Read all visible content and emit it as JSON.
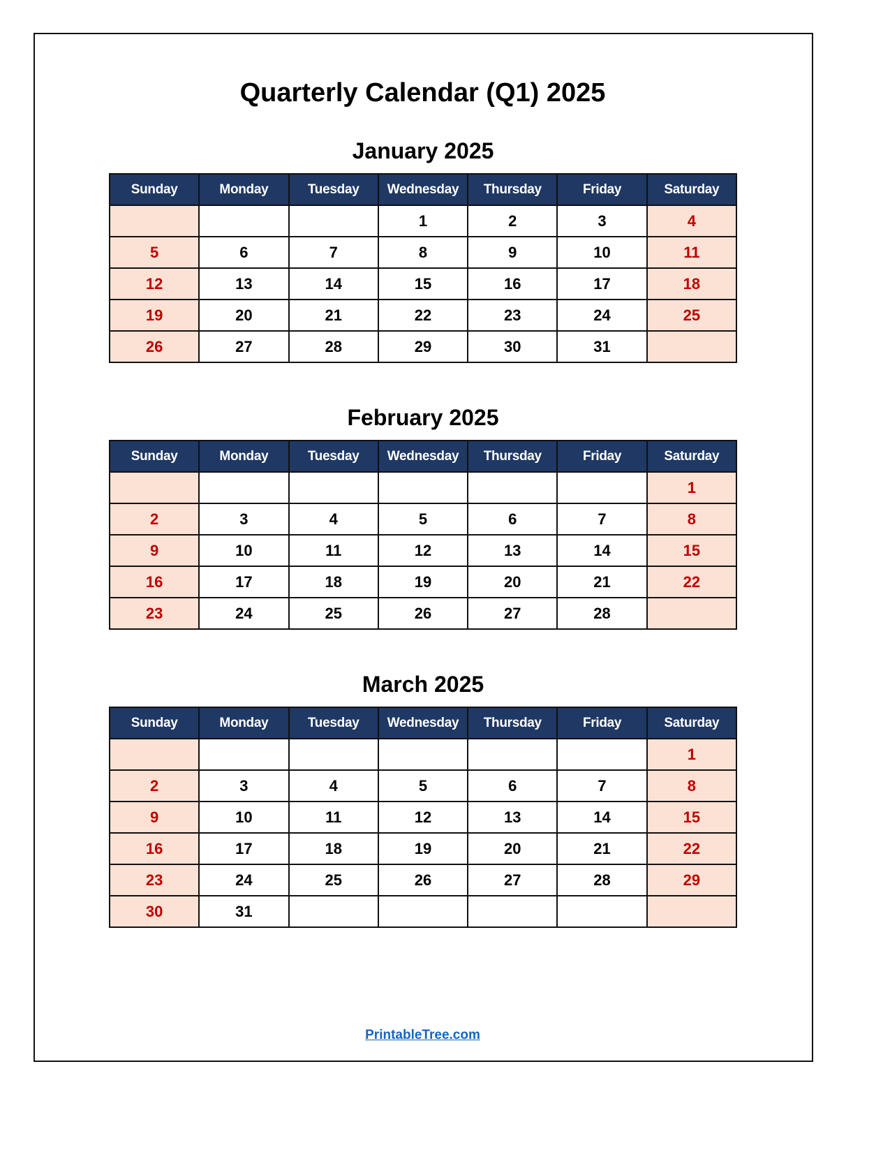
{
  "title": "Quarterly Calendar (Q1) 2025",
  "weekdays": [
    "Sunday",
    "Monday",
    "Tuesday",
    "Wednesday",
    "Thursday",
    "Friday",
    "Saturday"
  ],
  "colors": {
    "header_bg": "#1f3864",
    "weekend_bg": "#fbe2d5",
    "weekend_text": "#c00000",
    "link": "#1565c0"
  },
  "months": [
    {
      "title": "January 2025",
      "weeks": [
        [
          "",
          "",
          "",
          "1",
          "2",
          "3",
          "4"
        ],
        [
          "5",
          "6",
          "7",
          "8",
          "9",
          "10",
          "11"
        ],
        [
          "12",
          "13",
          "14",
          "15",
          "16",
          "17",
          "18"
        ],
        [
          "19",
          "20",
          "21",
          "22",
          "23",
          "24",
          "25"
        ],
        [
          "26",
          "27",
          "28",
          "29",
          "30",
          "31",
          ""
        ]
      ]
    },
    {
      "title": "February 2025",
      "weeks": [
        [
          "",
          "",
          "",
          "",
          "",
          "",
          "1"
        ],
        [
          "2",
          "3",
          "4",
          "5",
          "6",
          "7",
          "8"
        ],
        [
          "9",
          "10",
          "11",
          "12",
          "13",
          "14",
          "15"
        ],
        [
          "16",
          "17",
          "18",
          "19",
          "20",
          "21",
          "22"
        ],
        [
          "23",
          "24",
          "25",
          "26",
          "27",
          "28",
          ""
        ]
      ]
    },
    {
      "title": "March 2025",
      "weeks": [
        [
          "",
          "",
          "",
          "",
          "",
          "",
          "1"
        ],
        [
          "2",
          "3",
          "4",
          "5",
          "6",
          "7",
          "8"
        ],
        [
          "9",
          "10",
          "11",
          "12",
          "13",
          "14",
          "15"
        ],
        [
          "16",
          "17",
          "18",
          "19",
          "20",
          "21",
          "22"
        ],
        [
          "23",
          "24",
          "25",
          "26",
          "27",
          "28",
          "29"
        ],
        [
          "30",
          "31",
          "",
          "",
          "",
          "",
          ""
        ]
      ]
    }
  ],
  "footer": {
    "link_text": "PrintableTree.com"
  }
}
